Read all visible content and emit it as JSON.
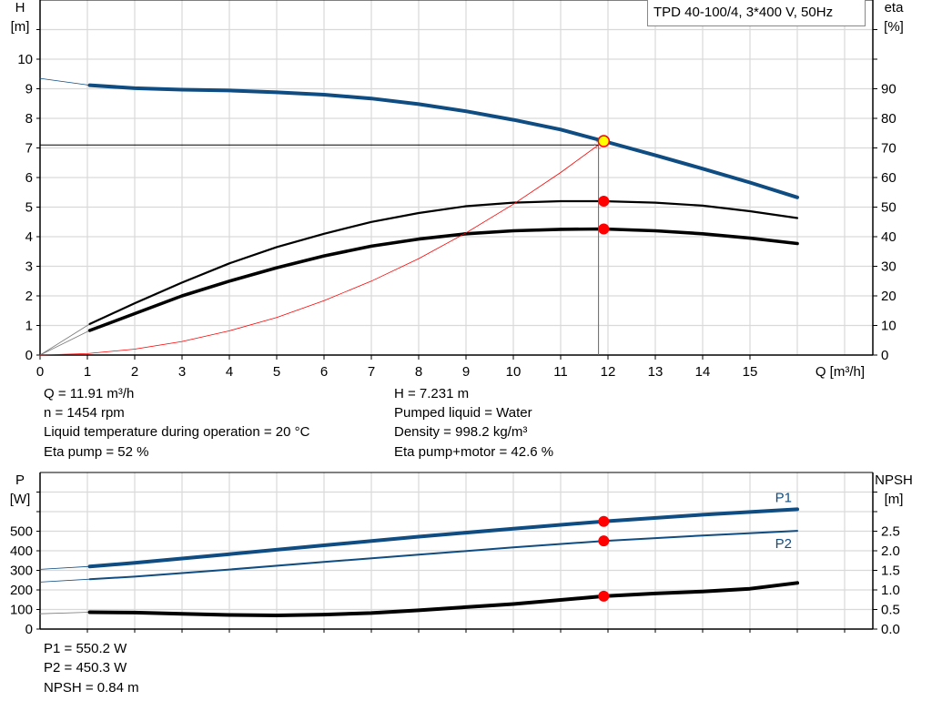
{
  "title": "TPD 40-100/4, 3*400 V, 50Hz",
  "chart_data": [
    {
      "type": "line",
      "title": "TPD 40-100/4, 3*400 V, 50Hz",
      "xlabel": "Q [m³/h]",
      "ylabel_left": {
        "name": "H",
        "unit": "[m]"
      },
      "ylabel_right": {
        "name": "eta",
        "unit": "[%]"
      },
      "xlim": [
        0,
        17.6
      ],
      "ylim_left": [
        0,
        12
      ],
      "ylim_right": [
        0,
        120
      ],
      "x_ticks": [
        "0",
        "1",
        "2",
        "3",
        "4",
        "5",
        "6",
        "7",
        "8",
        "9",
        "10",
        "11",
        "12",
        "13",
        "14",
        "15"
      ],
      "y_ticks_left": [
        "0",
        "1",
        "2",
        "3",
        "4",
        "5",
        "6",
        "7",
        "8",
        "9",
        "10"
      ],
      "y_ticks_right": [
        "0",
        "10",
        "20",
        "30",
        "40",
        "50",
        "60",
        "70",
        "80",
        "90"
      ],
      "grid": true,
      "series": [
        {
          "id": "H",
          "axis": "left",
          "color": "#0f4c81",
          "extension": [
            [
              0,
              9.35
            ],
            [
              1.05,
              9.12
            ]
          ],
          "points": [
            [
              1.05,
              9.12
            ],
            [
              2,
              9.02
            ],
            [
              3,
              8.97
            ],
            [
              4,
              8.94
            ],
            [
              5,
              8.88
            ],
            [
              6,
              8.8
            ],
            [
              7,
              8.67
            ],
            [
              8,
              8.48
            ],
            [
              9,
              8.24
            ],
            [
              10,
              7.95
            ],
            [
              11,
              7.62
            ],
            [
              11.91,
              7.231
            ],
            [
              13,
              6.75
            ],
            [
              14,
              6.3
            ],
            [
              15,
              5.83
            ],
            [
              16,
              5.33
            ]
          ]
        },
        {
          "id": "eta_pump",
          "axis": "right",
          "color": "#000000",
          "extension": [
            [
              0,
              0
            ],
            [
              1.05,
              10.5
            ]
          ],
          "points": [
            [
              1.05,
              10.5
            ],
            [
              2,
              17.5
            ],
            [
              3,
              24.5
            ],
            [
              4,
              31
            ],
            [
              5,
              36.5
            ],
            [
              6,
              41
            ],
            [
              7,
              45
            ],
            [
              8,
              48
            ],
            [
              9,
              50.3
            ],
            [
              10,
              51.5
            ],
            [
              11,
              52
            ],
            [
              11.91,
              52
            ],
            [
              13,
              51.5
            ],
            [
              14,
              50.5
            ],
            [
              15,
              48.6
            ],
            [
              16,
              46.3
            ]
          ]
        },
        {
          "id": "eta_pump_motor",
          "axis": "right",
          "color": "#000000",
          "extension": [
            [
              0,
              0
            ],
            [
              1.05,
              8.3
            ]
          ],
          "points": [
            [
              1.05,
              8.3
            ],
            [
              2,
              14
            ],
            [
              3,
              20
            ],
            [
              4,
              25
            ],
            [
              5,
              29.5
            ],
            [
              6,
              33.5
            ],
            [
              7,
              36.8
            ],
            [
              8,
              39.2
            ],
            [
              9,
              41
            ],
            [
              10,
              42
            ],
            [
              11,
              42.5
            ],
            [
              11.91,
              42.6
            ],
            [
              13,
              42
            ],
            [
              14,
              41
            ],
            [
              15,
              39.5
            ],
            [
              16,
              37.7
            ]
          ]
        },
        {
          "id": "system_curve",
          "axis": "left",
          "color": "#ff0000",
          "points": [
            [
              0,
              0
            ],
            [
              1,
              0.05
            ],
            [
              2,
              0.2
            ],
            [
              3,
              0.46
            ],
            [
              4,
              0.82
            ],
            [
              5,
              1.27
            ],
            [
              6,
              1.84
            ],
            [
              7,
              2.5
            ],
            [
              8,
              3.26
            ],
            [
              9,
              4.13
            ],
            [
              10,
              5.1
            ],
            [
              11,
              6.17
            ],
            [
              11.91,
              7.231
            ]
          ]
        }
      ],
      "operating_point": {
        "Q": 11.91,
        "H": 7.231,
        "eta_pump": 52,
        "eta_pump_motor": 42.6
      },
      "requested_point": {
        "Q": 11.8,
        "H": 7.1
      }
    },
    {
      "type": "line",
      "ylabel_left": {
        "name": "P",
        "unit": "[W]"
      },
      "ylabel_right": {
        "name": "NPSH",
        "unit": "[m]"
      },
      "xlim": [
        0,
        17.6
      ],
      "ylim_left": [
        0,
        800
      ],
      "ylim_right": [
        0,
        4
      ],
      "y_ticks_left": [
        "0",
        "100",
        "200",
        "300",
        "400",
        "500"
      ],
      "y_ticks_right": [
        "0.0",
        "0.5",
        "1.0",
        "1.5",
        "2.0",
        "2.5"
      ],
      "grid": true,
      "series": [
        {
          "id": "P1",
          "name": "P1",
          "axis": "left",
          "color": "#0f4c81",
          "extension": [
            [
              0,
              305
            ],
            [
              1.05,
              320
            ]
          ],
          "points": [
            [
              1.05,
              320
            ],
            [
              2,
              338
            ],
            [
              4,
              383
            ],
            [
              6,
              428
            ],
            [
              8,
              472
            ],
            [
              10,
              513
            ],
            [
              11.91,
              550.2
            ],
            [
              14,
              584
            ],
            [
              16,
              612
            ]
          ]
        },
        {
          "id": "P2",
          "name": "P2",
          "axis": "left",
          "color": "#0f4c81",
          "extension": [
            [
              0,
              240
            ],
            [
              1.05,
              255
            ]
          ],
          "points": [
            [
              1.05,
              255
            ],
            [
              2,
              268
            ],
            [
              4,
              304
            ],
            [
              6,
              343
            ],
            [
              8,
              380
            ],
            [
              10,
              417
            ],
            [
              11.91,
              450.3
            ],
            [
              14,
              478
            ],
            [
              16,
              502
            ]
          ]
        },
        {
          "id": "NPSH",
          "axis": "right",
          "color": "#000000",
          "extension": [
            [
              0,
              0.39
            ],
            [
              1.05,
              0.43
            ]
          ],
          "points": [
            [
              1.05,
              0.43
            ],
            [
              2,
              0.42
            ],
            [
              3,
              0.39
            ],
            [
              4,
              0.36
            ],
            [
              5,
              0.35
            ],
            [
              6,
              0.37
            ],
            [
              7,
              0.41
            ],
            [
              8,
              0.48
            ],
            [
              9,
              0.56
            ],
            [
              10,
              0.64
            ],
            [
              11.91,
              0.84
            ],
            [
              13,
              0.91
            ],
            [
              14,
              0.96
            ],
            [
              15,
              1.03
            ],
            [
              16,
              1.18
            ]
          ]
        }
      ],
      "operating_point": {
        "Q": 11.91,
        "P1": 550.2,
        "P2": 450.3,
        "NPSH": 0.84
      }
    }
  ],
  "info_top": {
    "left": [
      "Q = 11.91 m³/h",
      "n = 1454 rpm",
      "Liquid temperature during operation = 20 °C",
      "Eta pump = 52 %"
    ],
    "right": [
      "H = 7.231 m",
      "Pumped liquid = Water",
      "Density = 998.2 kg/m³",
      "Eta pump+motor = 42.6 %"
    ]
  },
  "info_bottom": [
    "P1 = 550.2 W",
    "P2 = 450.3 W",
    "NPSH = 0.84 m"
  ]
}
